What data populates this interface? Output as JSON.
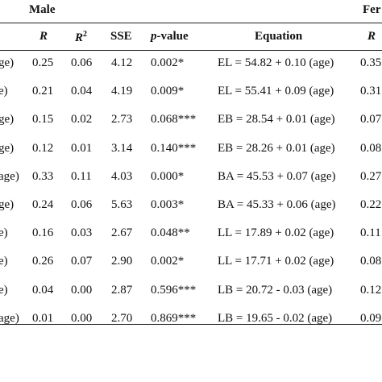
{
  "groups": {
    "left": "Male",
    "right": "Fer"
  },
  "headers": {
    "r": "R",
    "r2_base": "R",
    "r2_sup": "2",
    "sse": "SSE",
    "pvalue_italic": "p",
    "pvalue_rest": "-value",
    "equation": "Equation",
    "r_right": "R"
  },
  "rows": [
    {
      "label": "ge)",
      "r": "0.25",
      "r2": "0.06",
      "sse": "4.12",
      "p": "0.002*",
      "eq": "EL = 54.82 + 0.10 (age)",
      "r_right": "0.35"
    },
    {
      "label": "e)",
      "r": "0.21",
      "r2": "0.04",
      "sse": "4.19",
      "p": "0.009*",
      "eq": "EL = 55.41 + 0.09 (age)",
      "r_right": "0.31"
    },
    {
      "label": "ge)",
      "r": "0.15",
      "r2": "0.02",
      "sse": "2.73",
      "p": "0.068***",
      "eq": "EB = 28.54 + 0.01 (age)",
      "r_right": "0.07"
    },
    {
      "label": "ge)",
      "r": "0.12",
      "r2": "0.01",
      "sse": "3.14",
      "p": "0.140***",
      "eq": "EB = 28.26 + 0.01 (age)",
      "r_right": "0.08"
    },
    {
      "label": "age)",
      "r": "0.33",
      "r2": "0.11",
      "sse": "4.03",
      "p": "0.000*",
      "eq": "BA = 45.53 + 0.07 (age)",
      "r_right": "0.27"
    },
    {
      "label": "ge)",
      "r": "0.24",
      "r2": "0.06",
      "sse": "5.63",
      "p": "0.003*",
      "eq": "BA = 45.33 + 0.06 (age)",
      "r_right": "0.22"
    },
    {
      "label": "e)",
      "r": "0.16",
      "r2": "0.03",
      "sse": "2.67",
      "p": "0.048**",
      "eq": "LL = 17.89 + 0.02 (age)",
      "r_right": "0.11"
    },
    {
      "label": "e)",
      "r": "0.26",
      "r2": "0.07",
      "sse": "2.90",
      "p": "0.002*",
      "eq": "LL = 17.71 + 0.02 (age)",
      "r_right": "0.08"
    },
    {
      "label": "e)",
      "r": "0.04",
      "r2": "0.00",
      "sse": "2.87",
      "p": "0.596***",
      "eq": "LB = 20.72 - 0.03 (age)",
      "r_right": "0.12"
    },
    {
      "label": "age)",
      "r": "0.01",
      "r2": "0.00",
      "sse": "2.70",
      "p": "0.869***",
      "eq": "LB = 19.65 - 0.02 (age)",
      "r_right": "0.09"
    }
  ]
}
